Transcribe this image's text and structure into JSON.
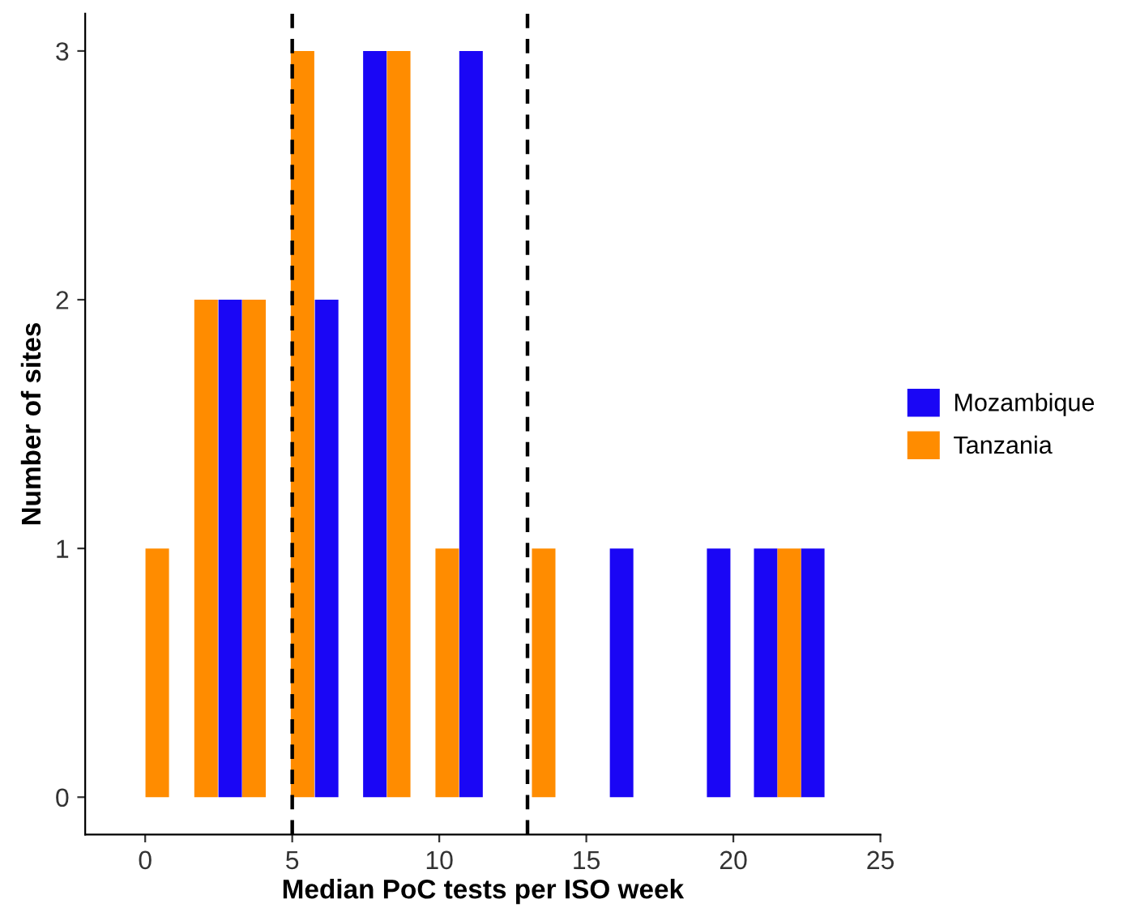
{
  "chart_data": {
    "type": "bar",
    "xlabel": "Median PoC tests per ISO week",
    "ylabel": "Number of sites",
    "xlim": [
      -2.04,
      25
    ],
    "xticks": [
      0,
      5,
      10,
      15,
      20,
      25
    ],
    "ylim": [
      -0.15,
      3.15
    ],
    "yticks": [
      0,
      1,
      2,
      3
    ],
    "grid": false,
    "legend": "right",
    "series": [
      {
        "name": "Mozambique",
        "color": "#1a06f5",
        "x": [
          2.89,
          6.17,
          7.81,
          11.08,
          16.2,
          19.5,
          21.1,
          22.7
        ],
        "values": [
          2,
          2,
          3,
          3,
          1,
          1,
          1,
          1
        ]
      },
      {
        "name": "Tanzania",
        "color": "#ff8c00",
        "x": [
          0.41,
          2.07,
          3.7,
          5.35,
          8.62,
          10.27,
          13.55,
          21.9
        ],
        "values": [
          1,
          2,
          2,
          3,
          3,
          1,
          1,
          1
        ]
      }
    ],
    "ref_lines": [
      {
        "axis": "x",
        "value": 5,
        "color": "#000000",
        "line_style": "dashed"
      },
      {
        "axis": "x",
        "value": 13,
        "color": "#000000",
        "line_style": "dashed"
      }
    ]
  }
}
